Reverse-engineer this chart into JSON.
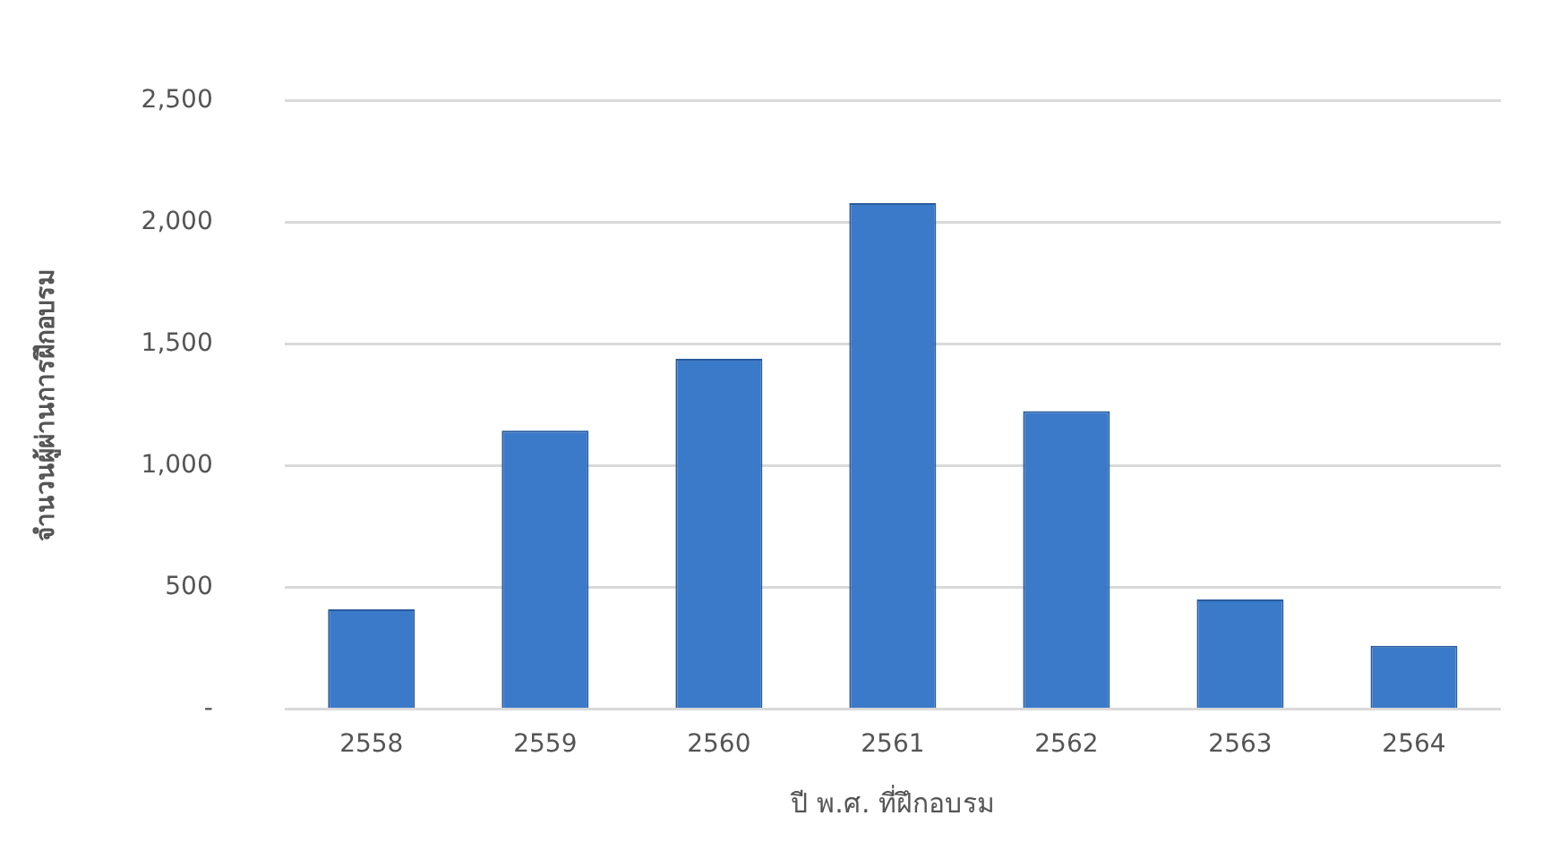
{
  "chart_data": {
    "type": "bar",
    "xlabel": "ปี พ.ศ. ที่ฝึกอบรม",
    "ylabel": "จำนวนผู้ผ่านการฝึกอบรม",
    "categories": [
      "2558",
      "2559",
      "2560",
      "2561",
      "2562",
      "2563",
      "2564"
    ],
    "values": [
      410,
      1145,
      1440,
      2080,
      1225,
      450,
      260
    ],
    "color": "#3b79c9",
    "ylim": [
      0,
      2500
    ],
    "yticks": [
      {
        "value": 0,
        "label": "-"
      },
      500,
      {
        "value": 1000,
        "label": "1,000"
      },
      {
        "value": 1500,
        "label": "1,500"
      },
      {
        "value": 2000,
        "label": "2,000"
      },
      {
        "value": 2500,
        "label": "2,500"
      }
    ],
    "grid": "y",
    "legend": false
  }
}
